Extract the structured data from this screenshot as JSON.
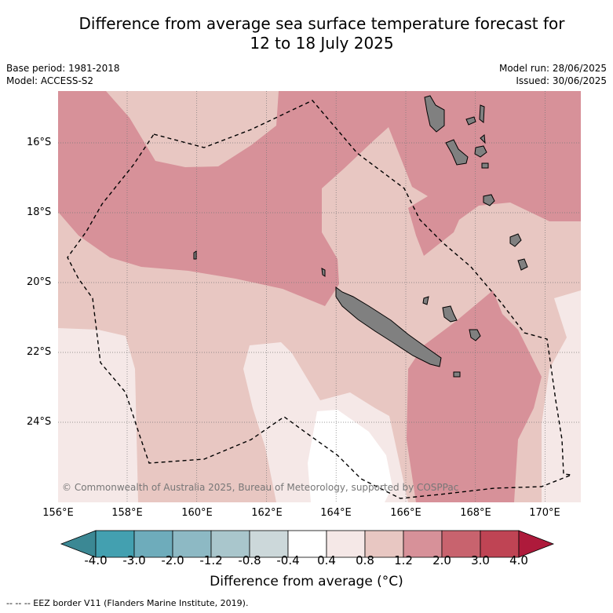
{
  "title_line1": "Difference from average sea surface temperature forecast for",
  "title_line2": "12 to 18 July 2025",
  "meta_left": {
    "base_period": "Base period: 1981-2018",
    "model": "Model: ACCESS-S2"
  },
  "meta_right": {
    "model_run": "Model run: 28/06/2025",
    "issued": "Issued: 30/06/2025"
  },
  "lat_labels": [
    "16°S",
    "18°S",
    "20°S",
    "22°S",
    "24°S"
  ],
  "lon_labels": [
    "156°E",
    "158°E",
    "160°E",
    "162°E",
    "164°E",
    "166°E",
    "168°E",
    "170°E"
  ],
  "copyright": "© Commonwealth of Australia 2025, Bureau of Meteorology, supported by COSPPac",
  "colorbar": {
    "tick_labels": [
      "-4.0",
      "-3.0",
      "-2.0",
      "-1.2",
      "-0.8",
      "-0.4",
      "0.4",
      "0.8",
      "1.2",
      "2.0",
      "3.0",
      "4.0"
    ],
    "colors": [
      "#43a0b0",
      "#6eacbb",
      "#8db9c4",
      "#a9c6cc",
      "#ccd8da",
      "#ffffff",
      "#f5e8e7",
      "#e8c7c2",
      "#d79199",
      "#c8636e",
      "#bf4454"
    ],
    "under_color": "#3b8894",
    "over_color": "#ae1a3b",
    "title": "Difference from average (°C)"
  },
  "eez_note": "--  --  -- EEZ border V11 (Flanders Marine Institute, 2019).",
  "map_extent": {
    "lon_min": 156,
    "lon_max": 171,
    "lat_min": -25.8,
    "lat_max": -14.8
  }
}
